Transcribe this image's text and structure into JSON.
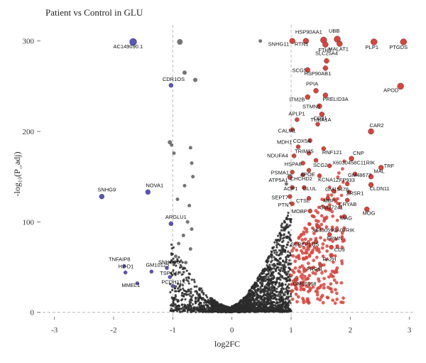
{
  "chart_data": {
    "type": "scatter",
    "title": "Patient vs Control in GLU",
    "xlabel": "log2FC",
    "ylabel": "-log₁₀(P_adj)",
    "xlim": [
      -3.2,
      3.1
    ],
    "ylim": [
      -5,
      310
    ],
    "xticks": [
      -3,
      -2,
      -1,
      0,
      1,
      2,
      3
    ],
    "yticks": [
      0,
      100,
      200,
      300
    ],
    "thresholds": {
      "x": [
        -1,
        1
      ],
      "y": 0
    },
    "grid": false,
    "colors": {
      "up": "#d6453d",
      "down": "#5a55b8",
      "ns": "#2b2b2b",
      "ns_big": "#666666",
      "threshold": "#bbbbbb"
    },
    "labeled_points": [
      {
        "gene": "AC149090.1",
        "x": -1.67,
        "y": 299,
        "group": "down",
        "size": 5
      },
      {
        "gene": "CDR1OS",
        "x": -1.03,
        "y": 251,
        "group": "down",
        "size": 3
      },
      {
        "gene": "SNHG9",
        "x": -2.2,
        "y": 128,
        "group": "down",
        "size": 3.5
      },
      {
        "gene": "NOVA1",
        "x": -1.42,
        "y": 133,
        "group": "down",
        "size": 3.5
      },
      {
        "gene": "ARGLU1",
        "x": -1.03,
        "y": 98,
        "group": "down",
        "size": 3
      },
      {
        "gene": "TNFAIP8",
        "x": -1.82,
        "y": 51,
        "group": "down",
        "size": 2.5
      },
      {
        "gene": "H2-D1",
        "x": -1.8,
        "y": 44,
        "group": "down",
        "size": 2.5
      },
      {
        "gene": "GM10125",
        "x": -1.36,
        "y": 45,
        "group": "down",
        "size": 2.5
      },
      {
        "gene": "MMEL1",
        "x": -1.6,
        "y": 32,
        "group": "down",
        "size": 2.5
      },
      {
        "gene": "SNHG20",
        "x": -1.1,
        "y": 49,
        "group": "down",
        "size": 2.5
      },
      {
        "gene": "TSPOAP1",
        "x": -1.05,
        "y": 39,
        "group": "down",
        "size": 2.5
      },
      {
        "gene": "PCDH11X",
        "x": -1.0,
        "y": 29,
        "group": "down",
        "size": 2.5
      },
      {
        "gene": "HSP90AA1",
        "x": 1.55,
        "y": 301,
        "group": "up",
        "size": 4.5
      },
      {
        "gene": "UBB",
        "x": 1.78,
        "y": 302,
        "group": "up",
        "size": 4.5
      },
      {
        "gene": "SNHG11",
        "x": 1.02,
        "y": 300,
        "group": "up",
        "size": 4
      },
      {
        "gene": "RTN1",
        "x": 1.25,
        "y": 300,
        "group": "up",
        "size": 4
      },
      {
        "gene": "FTH1",
        "x": 1.58,
        "y": 296,
        "group": "up",
        "size": 4
      },
      {
        "gene": "MALAT1",
        "x": 1.82,
        "y": 297,
        "group": "up",
        "size": 4
      },
      {
        "gene": "PLP1",
        "x": 2.4,
        "y": 299,
        "group": "up",
        "size": 4.5
      },
      {
        "gene": "PTGDS",
        "x": 2.9,
        "y": 299,
        "group": "up",
        "size": 4.5
      },
      {
        "gene": "SLC25A4",
        "x": 1.6,
        "y": 278,
        "group": "up",
        "size": 3.5
      },
      {
        "gene": "SCG5",
        "x": 1.28,
        "y": 268,
        "group": "up",
        "size": 3.5
      },
      {
        "gene": "HSP90AB1",
        "x": 1.58,
        "y": 270,
        "group": "up",
        "size": 3.5
      },
      {
        "gene": "PPIA",
        "x": 1.42,
        "y": 245,
        "group": "up",
        "size": 3.5
      },
      {
        "gene": "PRELID3A",
        "x": 1.58,
        "y": 240,
        "group": "up",
        "size": 3.5
      },
      {
        "gene": "ITM2B",
        "x": 1.28,
        "y": 238,
        "group": "up",
        "size": 3.5
      },
      {
        "gene": "APOD",
        "x": 2.85,
        "y": 250,
        "group": "up",
        "size": 4.5
      },
      {
        "gene": "STMN1",
        "x": 1.48,
        "y": 228,
        "group": "up",
        "size": 3.5
      },
      {
        "gene": "TUBA1A",
        "x": 1.52,
        "y": 219,
        "group": "up",
        "size": 3.5
      },
      {
        "gene": "APLP1",
        "x": 1.1,
        "y": 213,
        "group": "up",
        "size": 3
      },
      {
        "gene": "CD81",
        "x": 1.45,
        "y": 208,
        "group": "up",
        "size": 3
      },
      {
        "gene": "CALM1",
        "x": 1.02,
        "y": 202,
        "group": "up",
        "size": 3
      },
      {
        "gene": "CAR2",
        "x": 2.35,
        "y": 200,
        "group": "up",
        "size": 4
      },
      {
        "gene": "COX5A",
        "x": 1.32,
        "y": 190,
        "group": "up",
        "size": 3
      },
      {
        "gene": "MDH1",
        "x": 1.12,
        "y": 183,
        "group": "up",
        "size": 3
      },
      {
        "gene": "RNF121",
        "x": 1.55,
        "y": 181,
        "group": "up",
        "size": 3
      },
      {
        "gene": "TRIM35",
        "x": 1.3,
        "y": 176,
        "group": "up",
        "size": 3
      },
      {
        "gene": "NDUFA4",
        "x": 1.05,
        "y": 173,
        "group": "up",
        "size": 3
      },
      {
        "gene": "CNP",
        "x": 2.02,
        "y": 170,
        "group": "up",
        "size": 3.5
      },
      {
        "gene": "SCG2",
        "x": 1.42,
        "y": 168,
        "group": "up",
        "size": 3
      },
      {
        "gene": "HSPA8",
        "x": 1.2,
        "y": 165,
        "group": "up",
        "size": 3
      },
      {
        "gene": "X6030458C11RIK",
        "x": 1.65,
        "y": 162,
        "group": "up",
        "size": 3
      },
      {
        "gene": "TRF",
        "x": 2.52,
        "y": 160,
        "group": "up",
        "size": 3.5
      },
      {
        "gene": "APOE",
        "x": 1.3,
        "y": 157,
        "group": "up",
        "size": 3
      },
      {
        "gene": "PSMA1",
        "x": 1.02,
        "y": 155,
        "group": "up",
        "size": 3
      },
      {
        "gene": "GM48677",
        "x": 2.08,
        "y": 153,
        "group": "up",
        "size": 3
      },
      {
        "gene": "MAL",
        "x": 2.35,
        "y": 150,
        "group": "up",
        "size": 3.5
      },
      {
        "gene": "CHCHD2",
        "x": 1.2,
        "y": 152,
        "group": "up",
        "size": 3
      },
      {
        "gene": "KCNA1",
        "x": 1.48,
        "y": 151,
        "group": "up",
        "size": 3
      },
      {
        "gene": "ATP5A1",
        "x": 0.98,
        "y": 149,
        "group": "up",
        "size": 3
      },
      {
        "gene": "CLDN11",
        "x": 2.35,
        "y": 141,
        "group": "up",
        "size": 3.5
      },
      {
        "gene": "ZFP933",
        "x": 1.95,
        "y": 142,
        "group": "up",
        "size": 3
      },
      {
        "gene": "ACP1",
        "x": 1.02,
        "y": 138,
        "group": "up",
        "size": 3
      },
      {
        "gene": "GLUL",
        "x": 1.22,
        "y": 138,
        "group": "up",
        "size": 3
      },
      {
        "gene": "GM15478",
        "x": 1.72,
        "y": 134,
        "group": "up",
        "size": 3
      },
      {
        "gene": "ZRSR1",
        "x": 1.98,
        "y": 133,
        "group": "up",
        "size": 3
      },
      {
        "gene": "SEPT7",
        "x": 0.98,
        "y": 128,
        "group": "up",
        "size": 3
      },
      {
        "gene": "CTSL",
        "x": 1.3,
        "y": 126,
        "group": "up",
        "size": 3
      },
      {
        "gene": "MBP",
        "x": 1.62,
        "y": 126,
        "group": "up",
        "size": 3
      },
      {
        "gene": "CRYAB",
        "x": 1.95,
        "y": 124,
        "group": "up",
        "size": 3
      },
      {
        "gene": "PTN",
        "x": 1.02,
        "y": 120,
        "group": "up",
        "size": 3
      },
      {
        "gene": "GM27241",
        "x": 1.65,
        "y": 114,
        "group": "up",
        "size": 3
      },
      {
        "gene": "MOBP",
        "x": 1.32,
        "y": 112,
        "group": "up",
        "size": 3
      },
      {
        "gene": "MOG",
        "x": 2.28,
        "y": 114,
        "group": "up",
        "size": 3.5
      },
      {
        "gene": "MAG",
        "x": 1.9,
        "y": 106,
        "group": "up",
        "size": 3
      },
      {
        "gene": "X6430590A07RIK",
        "x": 1.45,
        "y": 95,
        "group": "up",
        "size": 3
      },
      {
        "gene": "ERMN",
        "x": 1.65,
        "y": 86,
        "group": "up",
        "size": 3
      },
      {
        "gene": "SCPEP1OS",
        "x": 1.42,
        "y": 78,
        "group": "up",
        "size": 3
      },
      {
        "gene": "CD9",
        "x": 1.68,
        "y": 72,
        "group": "up",
        "size": 3
      },
      {
        "gene": "FA2H",
        "x": 1.68,
        "y": 63,
        "group": "up",
        "size": 3
      },
      {
        "gene": "PRR5L",
        "x": 1.5,
        "y": 52,
        "group": "up",
        "size": 3
      },
      {
        "gene": "GM16168",
        "x": 1.08,
        "y": 36,
        "group": "up",
        "size": 3
      }
    ]
  }
}
